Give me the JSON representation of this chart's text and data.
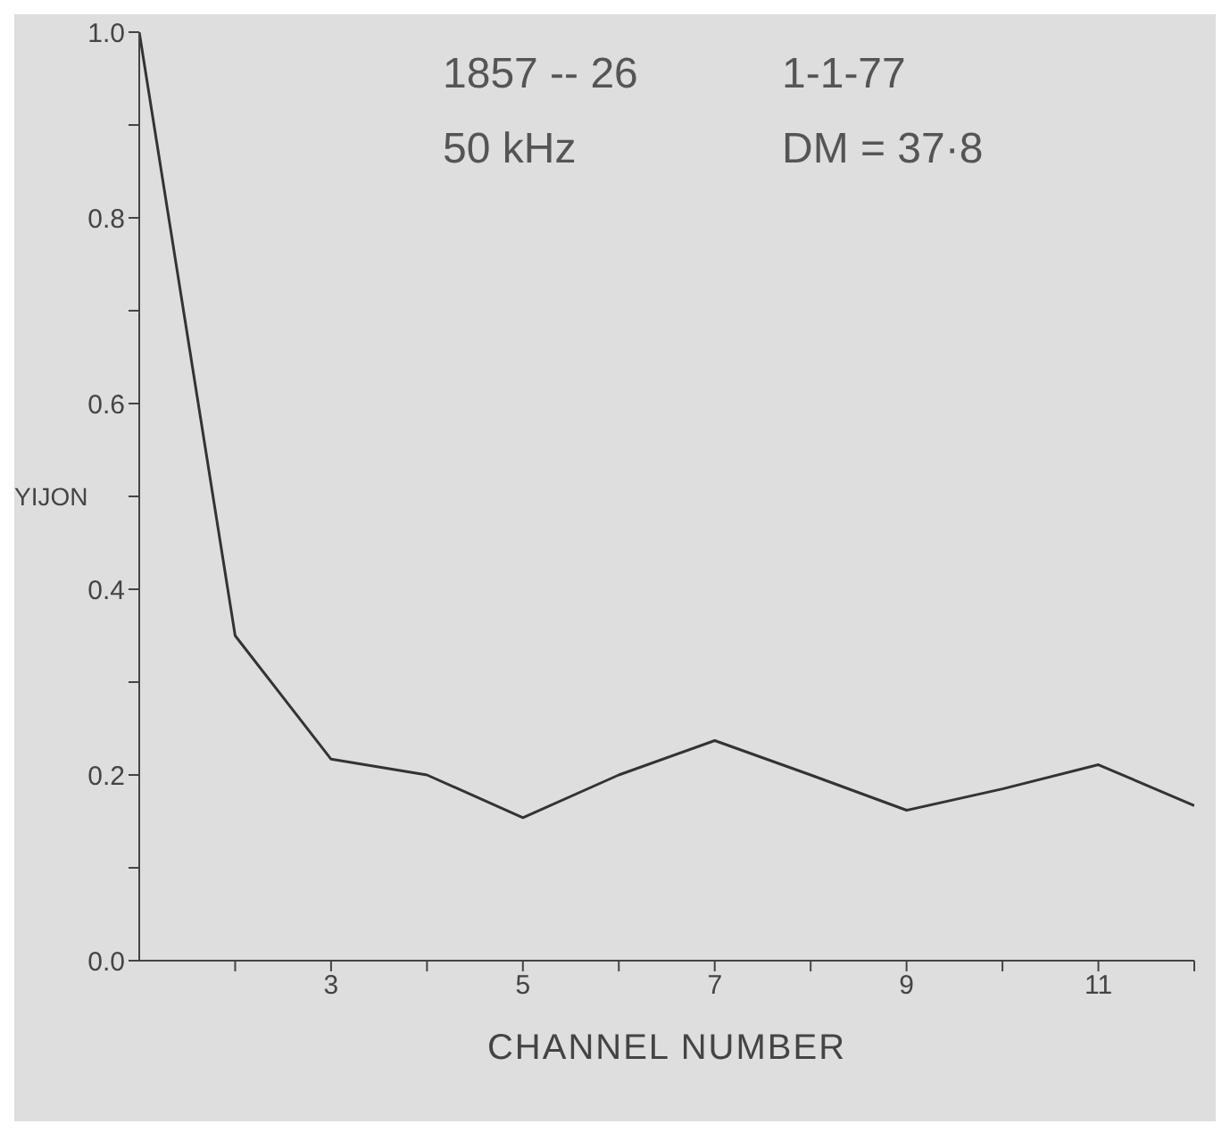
{
  "chart_data": {
    "type": "line",
    "xlabel": "CHANNEL NUMBER",
    "ylabel": "YIJON",
    "annotations": [
      "1857 -- 26",
      "1-1-77",
      "50 kHz",
      "DM = 37·8"
    ],
    "x": [
      1,
      2,
      3,
      4,
      5,
      6,
      7,
      8,
      9,
      10,
      11,
      12
    ],
    "series": [
      {
        "color": "#333333",
        "values": [
          1.0,
          0.35,
          0.217,
          0.2,
          0.154,
          0.2,
          0.237,
          0.2,
          0.162,
          0.185,
          0.211,
          0.167
        ]
      }
    ],
    "xlim": [
      1,
      12
    ],
    "xticks": [
      {
        "value": 2,
        "label": null
      },
      3,
      {
        "value": 4,
        "label": null
      },
      5,
      {
        "value": 6,
        "label": null
      },
      7,
      {
        "value": 8,
        "label": null
      },
      9,
      {
        "value": 10,
        "label": null
      },
      11,
      {
        "value": 12,
        "label": null
      }
    ],
    "ylim": [
      0,
      1
    ],
    "yticks": [
      {
        "value": 0,
        "label": "0.0"
      },
      {
        "value": 0.1,
        "label": null
      },
      {
        "value": 0.2,
        "label": "0.2"
      },
      {
        "value": 0.3,
        "label": null
      },
      {
        "value": 0.4,
        "label": "0.4"
      },
      {
        "value": 0.5,
        "label": null
      },
      {
        "value": 0.6,
        "label": "0.6"
      },
      {
        "value": 0.7,
        "label": null
      },
      {
        "value": 0.8,
        "label": "0.8"
      },
      {
        "value": 0.9,
        "label": null
      },
      {
        "value": 1,
        "label": "1.0"
      }
    ],
    "grid": false,
    "marker": "none",
    "line_style": "solid"
  }
}
